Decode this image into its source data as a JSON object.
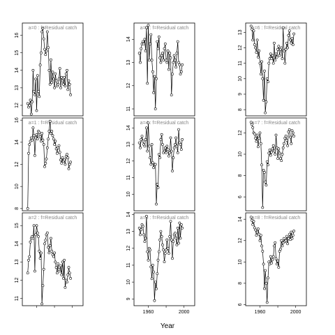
{
  "figure": {
    "xlabel": "Year",
    "line_color": "#000000",
    "point_fill": "#ffffff",
    "strip_text_color": "#888888"
  },
  "chart_data": [
    {
      "type": "line",
      "label": "a=0  :  f=Residual catch",
      "xlim": [
        1944,
        2012
      ],
      "ylim": [
        11.4,
        16.7
      ],
      "xticks": [],
      "yticks": [
        12,
        13,
        14,
        15,
        16
      ],
      "xticklabels": [],
      "x": [
        1950,
        1951,
        1952,
        1953,
        1954,
        1955,
        1956,
        1957,
        1958,
        1959,
        1960,
        1961,
        1962,
        1963,
        1964,
        1965,
        1966,
        1967,
        1968,
        1969,
        1970,
        1971,
        1972,
        1973,
        1974,
        1975,
        1976,
        1977,
        1978,
        1979,
        1980,
        1981,
        1982,
        1983,
        1984,
        1985,
        1986,
        1987,
        1988,
        1989,
        1990,
        1991,
        1992,
        1993,
        1994,
        1995,
        1996,
        1997,
        1998
      ],
      "y": [
        12.1,
        11.9,
        12.0,
        12.3,
        11.5,
        12.2,
        14.0,
        12.8,
        12.6,
        13.5,
        11.7,
        13.7,
        12.8,
        12.5,
        14.3,
        15.0,
        16.2,
        16.4,
        15.8,
        15.2,
        14.9,
        15.1,
        16.2,
        15.3,
        14.0,
        13.2,
        14.6,
        13.3,
        13.9,
        13.5,
        13.0,
        13.8,
        13.4,
        13.1,
        13.2,
        13.5,
        14.1,
        13.0,
        13.6,
        13.4,
        13.2,
        13.6,
        13.1,
        13.8,
        14.0,
        12.9,
        13.4,
        13.2,
        12.6
      ]
    },
    {
      "type": "line",
      "label": "a=3  :  f=Residual catch",
      "xlim": [
        1944,
        2012
      ],
      "ylim": [
        10.7,
        14.7
      ],
      "xticks": [],
      "yticks": [
        11,
        12,
        13,
        14
      ],
      "xticklabels": [],
      "x": [
        1950,
        1951,
        1952,
        1953,
        1954,
        1955,
        1956,
        1957,
        1958,
        1959,
        1960,
        1961,
        1962,
        1963,
        1964,
        1965,
        1966,
        1967,
        1968,
        1969,
        1970,
        1971,
        1972,
        1973,
        1974,
        1975,
        1976,
        1977,
        1978,
        1979,
        1980,
        1981,
        1982,
        1983,
        1984,
        1985,
        1986,
        1987,
        1988,
        1989,
        1990,
        1991,
        1992,
        1993,
        1994,
        1995,
        1996,
        1997,
        1998
      ],
      "y": [
        13.4,
        13.0,
        13.6,
        13.8,
        13.9,
        13.8,
        14.0,
        13.5,
        14.5,
        12.1,
        14.6,
        13.1,
        13.8,
        14.2,
        13.1,
        12.6,
        11.7,
        12.4,
        11.0,
        12.3,
        13.9,
        13.6,
        14.1,
        13.2,
        13.0,
        13.3,
        13.4,
        13.1,
        13.6,
        13.8,
        13.1,
        13.0,
        13.5,
        12.7,
        13.4,
        13.2,
        11.6,
        12.5,
        13.0,
        13.3,
        13.1,
        12.8,
        13.4,
        13.9,
        13.0,
        12.9,
        12.5,
        12.6,
        12.9
      ]
    },
    {
      "type": "line",
      "label": "a=6  :  f=Residual catch",
      "xlim": [
        1944,
        2012
      ],
      "ylim": [
        7.6,
        13.6
      ],
      "xticks": [],
      "yticks": [
        8,
        9,
        10,
        11,
        12,
        13
      ],
      "xticklabels": [],
      "x": [
        1950,
        1951,
        1952,
        1953,
        1954,
        1955,
        1956,
        1957,
        1958,
        1959,
        1960,
        1961,
        1962,
        1963,
        1964,
        1965,
        1966,
        1967,
        1968,
        1969,
        1970,
        1971,
        1972,
        1973,
        1974,
        1975,
        1976,
        1977,
        1978,
        1979,
        1980,
        1981,
        1982,
        1983,
        1984,
        1985,
        1986,
        1987,
        1988,
        1989,
        1990,
        1991,
        1992,
        1993,
        1994,
        1995,
        1996,
        1997,
        1998
      ],
      "y": [
        13.4,
        13.2,
        12.5,
        13.1,
        12.2,
        12.0,
        11.7,
        12.5,
        11.4,
        11.8,
        11.0,
        10.3,
        11.1,
        10.0,
        8.6,
        10.5,
        7.8,
        8.5,
        10.0,
        9.8,
        11.0,
        11.3,
        11.6,
        11.3,
        11.5,
        11.0,
        12.3,
        11.2,
        11.6,
        11.4,
        11.9,
        12.1,
        11.5,
        11.9,
        12.0,
        11.3,
        13.3,
        11.8,
        11.0,
        11.9,
        12.3,
        12.0,
        12.8,
        13.1,
        12.5,
        12.3,
        12.6,
        12.2,
        12.9
      ]
    },
    {
      "type": "line",
      "label": "a=1  :  f=Residual catch",
      "xlim": [
        1944,
        2012
      ],
      "ylim": [
        7.8,
        16.2
      ],
      "xticks": [],
      "yticks": [
        8,
        10,
        12,
        14,
        16
      ],
      "xticklabels": [],
      "x": [
        1950,
        1951,
        1952,
        1953,
        1954,
        1955,
        1956,
        1957,
        1958,
        1959,
        1960,
        1961,
        1962,
        1963,
        1964,
        1965,
        1966,
        1967,
        1968,
        1969,
        1970,
        1971,
        1972,
        1973,
        1974,
        1975,
        1976,
        1977,
        1978,
        1979,
        1980,
        1981,
        1982,
        1983,
        1984,
        1985,
        1986,
        1987,
        1988,
        1989,
        1990,
        1991,
        1992,
        1993,
        1994,
        1995,
        1996,
        1997,
        1998
      ],
      "y": [
        8.0,
        13.0,
        13.8,
        14.1,
        14.4,
        14.2,
        15.3,
        14.6,
        12.8,
        14.4,
        14.7,
        14.3,
        15.0,
        14.9,
        14.5,
        14.1,
        14.8,
        14.2,
        13.8,
        11.8,
        12.1,
        12.5,
        13.5,
        14.3,
        15.0,
        15.9,
        14.8,
        15.0,
        14.6,
        14.3,
        13.8,
        14.1,
        13.4,
        13.0,
        13.5,
        13.7,
        13.1,
        12.4,
        12.1,
        12.6,
        12.3,
        12.4,
        12.0,
        12.7,
        12.9,
        12.6,
        11.6,
        12.0,
        12.2
      ]
    },
    {
      "type": "line",
      "label": "a=4  :  f=Residual catch",
      "xlim": [
        1944,
        2012
      ],
      "ylim": [
        9.0,
        14.6
      ],
      "xticks": [],
      "yticks": [
        10,
        11,
        12,
        13,
        14
      ],
      "xticklabels": [],
      "x": [
        1950,
        1951,
        1952,
        1953,
        1954,
        1955,
        1956,
        1957,
        1958,
        1959,
        1960,
        1961,
        1962,
        1963,
        1964,
        1965,
        1966,
        1967,
        1968,
        1969,
        1970,
        1971,
        1972,
        1973,
        1974,
        1975,
        1976,
        1977,
        1978,
        1979,
        1980,
        1981,
        1982,
        1983,
        1984,
        1985,
        1986,
        1987,
        1988,
        1989,
        1990,
        1991,
        1992,
        1993,
        1994,
        1995,
        1996,
        1997,
        1998
      ],
      "y": [
        13.1,
        12.8,
        13.3,
        13.5,
        13.2,
        13.0,
        12.9,
        13.3,
        14.0,
        12.6,
        14.3,
        12.9,
        12.2,
        11.8,
        13.0,
        11.9,
        11.6,
        11.8,
        11.8,
        9.4,
        10.6,
        10.4,
        12.4,
        12.2,
        13.3,
        13.6,
        13.0,
        12.5,
        12.6,
        12.8,
        12.5,
        12.9,
        12.7,
        12.3,
        12.5,
        13.4,
        12.6,
        11.4,
        12.2,
        12.8,
        13.0,
        13.4,
        12.9,
        12.5,
        13.9,
        13.1,
        13.0,
        12.7,
        13.3
      ]
    },
    {
      "type": "line",
      "label": "a=7  :  f=Residual catch",
      "xlim": [
        1944,
        2012
      ],
      "ylim": [
        4.7,
        13.4
      ],
      "xticks": [],
      "yticks": [
        6,
        8,
        10,
        12
      ],
      "xticklabels": [],
      "x": [
        1950,
        1951,
        1952,
        1953,
        1954,
        1955,
        1956,
        1957,
        1958,
        1959,
        1960,
        1961,
        1962,
        1963,
        1964,
        1965,
        1966,
        1967,
        1968,
        1969,
        1970,
        1971,
        1972,
        1973,
        1974,
        1975,
        1976,
        1977,
        1978,
        1979,
        1980,
        1981,
        1982,
        1983,
        1984,
        1985,
        1986,
        1987,
        1988,
        1989,
        1990,
        1991,
        1992,
        1993,
        1994,
        1995,
        1996,
        1997,
        1998
      ],
      "y": [
        13.0,
        12.8,
        12.5,
        12.0,
        11.9,
        11.5,
        11.2,
        11.8,
        10.7,
        11.5,
        12.0,
        11.0,
        9.0,
        5.0,
        8.5,
        8.3,
        7.4,
        7.1,
        9.3,
        9.0,
        10.1,
        10.4,
        9.9,
        10.2,
        10.5,
        10.8,
        10.3,
        10.0,
        11.8,
        10.6,
        9.6,
        10.5,
        10.1,
        9.6,
        9.4,
        10.0,
        10.6,
        11.0,
        11.5,
        11.7,
        11.3,
        10.8,
        12.1,
        12.3,
        11.6,
        11.0,
        12.2,
        12.0,
        11.7
      ]
    },
    {
      "type": "line",
      "label": "a=2  :  f=Residual catch",
      "xlim": [
        1944,
        2012
      ],
      "ylim": [
        10.6,
        15.7
      ],
      "xticks": [
        1960,
        1980,
        2000
      ],
      "yticks": [
        11,
        12,
        13,
        14,
        15
      ],
      "xticklabels": [],
      "x": [
        1950,
        1951,
        1952,
        1953,
        1954,
        1955,
        1956,
        1957,
        1958,
        1959,
        1960,
        1961,
        1962,
        1963,
        1964,
        1965,
        1966,
        1967,
        1968,
        1969,
        1970,
        1971,
        1972,
        1973,
        1974,
        1975,
        1976,
        1977,
        1978,
        1979,
        1980,
        1981,
        1982,
        1983,
        1984,
        1985,
        1986,
        1987,
        1988,
        1989,
        1990,
        1991,
        1992,
        1993,
        1994,
        1995,
        1996,
        1997,
        1998
      ],
      "y": [
        12.4,
        13.1,
        13.3,
        14.1,
        14.3,
        14.4,
        14.3,
        15.0,
        12.5,
        14.5,
        15.0,
        14.6,
        14.4,
        13.6,
        13.2,
        13.5,
        10.7,
        11.7,
        12.6,
        14.0,
        14.2,
        14.5,
        14.6,
        13.8,
        13.5,
        13.9,
        14.3,
        13.6,
        13.4,
        13.3,
        13.5,
        13.0,
        12.7,
        12.4,
        12.9,
        12.6,
        12.5,
        12.8,
        12.3,
        13.0,
        12.1,
        13.1,
        11.6,
        12.0,
        11.9,
        12.3,
        12.7,
        12.4,
        12.1
      ]
    },
    {
      "type": "line",
      "label": "a=5  :  f=Residual catch",
      "xlim": [
        1944,
        2012
      ],
      "ylim": [
        8.6,
        14.1
      ],
      "xticks": [
        1960,
        1980,
        2000
      ],
      "yticks": [
        9,
        10,
        11,
        12,
        13,
        14
      ],
      "xticklabels": [
        "1960",
        "2000"
      ],
      "x": [
        1950,
        1951,
        1952,
        1953,
        1954,
        1955,
        1956,
        1957,
        1958,
        1959,
        1960,
        1961,
        1962,
        1963,
        1964,
        1965,
        1966,
        1967,
        1968,
        1969,
        1970,
        1971,
        1972,
        1973,
        1974,
        1975,
        1976,
        1977,
        1978,
        1979,
        1980,
        1981,
        1982,
        1983,
        1984,
        1985,
        1986,
        1987,
        1988,
        1989,
        1990,
        1991,
        1992,
        1993,
        1994,
        1995,
        1996,
        1997,
        1998
      ],
      "y": [
        13.2,
        12.8,
        13.1,
        13.4,
        13.3,
        12.8,
        12.4,
        12.6,
        13.9,
        11.8,
        11.3,
        12.0,
        11.9,
        10.9,
        10.2,
        11.0,
        10.6,
        8.9,
        10.0,
        9.6,
        10.5,
        11.3,
        11.8,
        12.5,
        13.0,
        12.7,
        12.2,
        11.9,
        11.2,
        11.7,
        11.9,
        12.5,
        12.0,
        11.7,
        12.7,
        13.6,
        12.5,
        11.4,
        12.4,
        12.8,
        12.9,
        12.6,
        12.2,
        13.2,
        12.3,
        13.5,
        12.6,
        13.4,
        13.2
      ]
    },
    {
      "type": "line",
      "label": "a=8  :  f=Residual catch",
      "xlim": [
        1944,
        2012
      ],
      "ylim": [
        5.9,
        14.6
      ],
      "xticks": [
        1960,
        1980,
        2000
      ],
      "yticks": [
        6,
        8,
        10,
        12,
        14
      ],
      "xticklabels": [
        "1960",
        "2000"
      ],
      "x": [
        1950,
        1951,
        1952,
        1953,
        1954,
        1955,
        1956,
        1957,
        1958,
        1959,
        1960,
        1961,
        1962,
        1963,
        1964,
        1965,
        1966,
        1967,
        1968,
        1969,
        1970,
        1971,
        1972,
        1973,
        1974,
        1975,
        1976,
        1977,
        1978,
        1979,
        1980,
        1981,
        1982,
        1983,
        1984,
        1985,
        1986,
        1987,
        1988,
        1989,
        1990,
        1991,
        1992,
        1993,
        1994,
        1995,
        1996,
        1997,
        1998
      ],
      "y": [
        14.2,
        13.9,
        13.5,
        13.8,
        13.2,
        13.0,
        12.5,
        12.8,
        13.1,
        12.6,
        12.0,
        12.5,
        11.5,
        11.0,
        9.8,
        7.5,
        9.2,
        8.0,
        6.2,
        8.5,
        10.0,
        9.8,
        10.5,
        9.9,
        10.2,
        10.5,
        11.5,
        11.8,
        10.3,
        9.8,
        10.1,
        9.5,
        11.0,
        11.2,
        12.0,
        11.5,
        11.8,
        12.2,
        11.9,
        12.0,
        12.4,
        11.7,
        12.2,
        12.6,
        12.1,
        12.8,
        12.2,
        12.5,
        12.9
      ]
    }
  ]
}
